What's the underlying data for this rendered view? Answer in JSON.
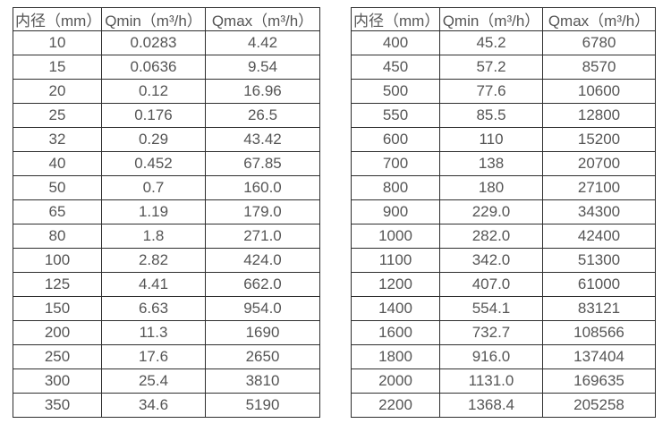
{
  "colors": {
    "background": "#ffffff",
    "border": "#2e2e2e",
    "text": "#555555"
  },
  "tables": [
    {
      "name": "flow-spec-table-small-diameters",
      "headers": [
        "内径（mm）",
        "Qmin（m³/h）",
        "Qmax（m³/h）"
      ],
      "rows": [
        [
          "10",
          "0.0283",
          "4.42"
        ],
        [
          "15",
          "0.0636",
          "9.54"
        ],
        [
          "20",
          "0.12",
          "16.96"
        ],
        [
          "25",
          "0.176",
          "26.5"
        ],
        [
          "32",
          "0.29",
          "43.42"
        ],
        [
          "40",
          "0.452",
          "67.85"
        ],
        [
          "50",
          "0.7",
          "160.0"
        ],
        [
          "65",
          "1.19",
          "179.0"
        ],
        [
          "80",
          "1.8",
          "271.0"
        ],
        [
          "100",
          "2.82",
          "424.0"
        ],
        [
          "125",
          "4.41",
          "662.0"
        ],
        [
          "150",
          "6.63",
          "954.0"
        ],
        [
          "200",
          "11.3",
          "1690"
        ],
        [
          "250",
          "17.6",
          "2650"
        ],
        [
          "300",
          "25.4",
          "3810"
        ],
        [
          "350",
          "34.6",
          "5190"
        ]
      ]
    },
    {
      "name": "flow-spec-table-large-diameters",
      "headers": [
        "内径（mm）",
        "Qmin（m³/h）",
        "Qmax（m³/h）"
      ],
      "rows": [
        [
          "400",
          "45.2",
          "6780"
        ],
        [
          "450",
          "57.2",
          "8570"
        ],
        [
          "500",
          "77.6",
          "10600"
        ],
        [
          "550",
          "85.5",
          "12800"
        ],
        [
          "600",
          "110",
          "15200"
        ],
        [
          "700",
          "138",
          "20700"
        ],
        [
          "800",
          "180",
          "27100"
        ],
        [
          "900",
          "229.0",
          "34300"
        ],
        [
          "1000",
          "282.0",
          "42400"
        ],
        [
          "1100",
          "342.0",
          "51300"
        ],
        [
          "1200",
          "407.0",
          "61000"
        ],
        [
          "1400",
          "554.1",
          "83121"
        ],
        [
          "1600",
          "732.7",
          "108566"
        ],
        [
          "1800",
          "916.0",
          "137404"
        ],
        [
          "2000",
          "1131.0",
          "169635"
        ],
        [
          "2200",
          "1368.4",
          "205258"
        ]
      ]
    }
  ]
}
